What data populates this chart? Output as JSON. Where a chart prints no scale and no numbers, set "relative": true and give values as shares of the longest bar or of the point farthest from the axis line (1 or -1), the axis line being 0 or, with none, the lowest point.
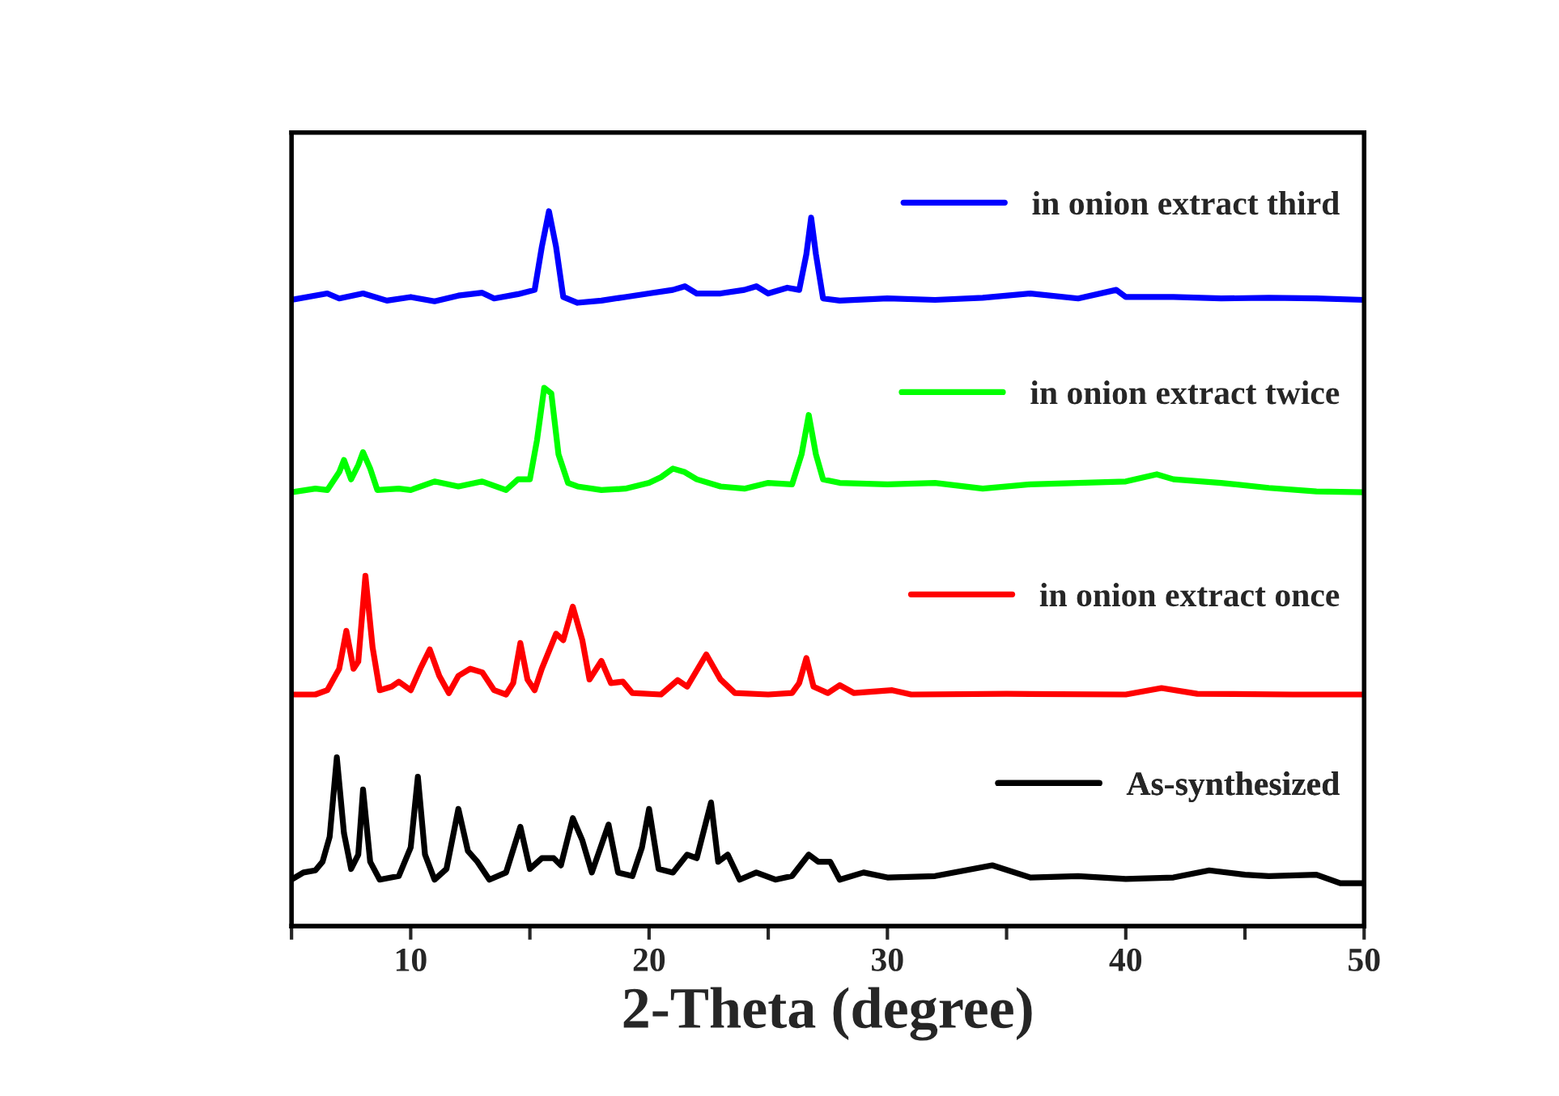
{
  "chart_data": {
    "type": "line",
    "relative": true,
    "xlabel": "2-Theta (degree)",
    "xlim": [
      5,
      50
    ],
    "xticks": [
      {
        "value": 5,
        "label": null
      },
      10,
      {
        "value": 15,
        "label": null
      },
      20,
      {
        "value": 25,
        "label": null
      },
      30,
      {
        "value": 35,
        "label": null
      },
      40,
      {
        "value": 45,
        "label": null
      },
      50
    ],
    "tick_labels": "x",
    "grid": false,
    "legend": "right",
    "marker": "none",
    "line_style": "solid",
    "series": [
      {
        "name": "in onion extract third",
        "color": "#0000ff",
        "x": [
          5,
          6.5,
          7,
          8,
          9,
          10,
          11,
          12,
          13,
          13.5,
          14.5,
          15.2,
          15.5,
          15.8,
          16.1,
          16.4,
          17,
          18,
          19,
          20,
          21,
          21.5,
          22,
          23,
          24,
          24.5,
          25,
          25.8,
          26.3,
          26.6,
          26.8,
          27,
          27.3,
          28,
          30,
          32,
          34,
          36,
          38,
          39.6,
          40,
          42,
          44,
          46,
          48,
          50
        ],
        "values": [
          0.876,
          0.885,
          0.878,
          0.885,
          0.875,
          0.88,
          0.874,
          0.882,
          0.886,
          0.878,
          0.884,
          0.89,
          0.95,
          1.0,
          0.95,
          0.88,
          0.872,
          0.875,
          0.88,
          0.885,
          0.89,
          0.895,
          0.885,
          0.885,
          0.89,
          0.895,
          0.885,
          0.893,
          0.89,
          0.94,
          0.991,
          0.94,
          0.878,
          0.875,
          0.878,
          0.876,
          0.879,
          0.885,
          0.878,
          0.89,
          0.88,
          0.88,
          0.878,
          0.879,
          0.878,
          0.876
        ]
      },
      {
        "name": "in onion extract twice",
        "color": "#00ff00",
        "x": [
          5,
          6,
          6.5,
          7,
          7.2,
          7.5,
          7.8,
          8,
          8.3,
          8.6,
          9.5,
          10,
          11,
          12,
          13,
          14,
          14.5,
          15,
          15.3,
          15.6,
          15.9,
          16.2,
          16.6,
          17,
          18,
          19,
          20,
          20.5,
          21,
          21.5,
          22,
          23,
          24,
          25,
          26,
          26.4,
          26.7,
          27,
          27.3,
          28,
          30,
          32,
          34,
          36,
          38,
          40,
          41.3,
          42,
          44,
          46,
          48,
          50
        ],
        "values": [
          0.607,
          0.612,
          0.61,
          0.635,
          0.652,
          0.625,
          0.645,
          0.663,
          0.64,
          0.61,
          0.612,
          0.61,
          0.622,
          0.615,
          0.622,
          0.61,
          0.625,
          0.625,
          0.68,
          0.753,
          0.745,
          0.66,
          0.62,
          0.615,
          0.61,
          0.612,
          0.62,
          0.628,
          0.64,
          0.635,
          0.625,
          0.615,
          0.612,
          0.62,
          0.618,
          0.66,
          0.715,
          0.66,
          0.625,
          0.62,
          0.618,
          0.62,
          0.612,
          0.618,
          0.62,
          0.622,
          0.632,
          0.625,
          0.62,
          0.613,
          0.608,
          0.607
        ]
      },
      {
        "name": "in onion extract once",
        "color": "#ff0000",
        "x": [
          5,
          6,
          6.5,
          7,
          7.3,
          7.6,
          7.8,
          8.1,
          8.4,
          8.7,
          9.2,
          9.5,
          10,
          10.4,
          10.8,
          11.2,
          11.6,
          12,
          12.5,
          13,
          13.5,
          14,
          14.3,
          14.6,
          14.9,
          15.2,
          15.5,
          16.1,
          16.4,
          16.8,
          17.2,
          17.5,
          18,
          18.4,
          18.9,
          19.3,
          20.5,
          21.2,
          21.6,
          22.4,
          23,
          23.6,
          25,
          26,
          26.3,
          26.6,
          26.9,
          27.5,
          28,
          28.6,
          30.2,
          31,
          35,
          40,
          41.5,
          43,
          47,
          50
        ],
        "values": [
          0.324,
          0.324,
          0.33,
          0.36,
          0.413,
          0.36,
          0.37,
          0.49,
          0.39,
          0.33,
          0.335,
          0.342,
          0.33,
          0.36,
          0.387,
          0.35,
          0.326,
          0.35,
          0.36,
          0.355,
          0.33,
          0.324,
          0.34,
          0.396,
          0.345,
          0.33,
          0.36,
          0.409,
          0.4,
          0.447,
          0.4,
          0.345,
          0.371,
          0.34,
          0.342,
          0.326,
          0.324,
          0.344,
          0.335,
          0.38,
          0.345,
          0.326,
          0.324,
          0.326,
          0.34,
          0.375,
          0.335,
          0.326,
          0.337,
          0.326,
          0.33,
          0.324,
          0.325,
          0.324,
          0.333,
          0.325,
          0.324,
          0.324
        ]
      },
      {
        "name": "As-synthesized",
        "color": "#000000",
        "x": [
          5,
          5.5,
          6,
          6.3,
          6.6,
          6.9,
          7.2,
          7.5,
          7.8,
          8,
          8.3,
          8.7,
          9.5,
          10,
          10.3,
          10.6,
          11,
          11.5,
          12,
          12.4,
          12.8,
          13.3,
          14,
          14.6,
          15,
          15.5,
          16,
          16.3,
          16.8,
          17.2,
          17.6,
          18.3,
          18.7,
          19.3,
          19.7,
          20,
          20.4,
          21,
          21.6,
          22,
          22.6,
          22.9,
          23.3,
          23.8,
          24.5,
          25.3,
          26,
          26.7,
          27.1,
          27.6,
          28,
          29,
          30,
          32,
          34.4,
          36,
          38,
          40,
          42,
          43.5,
          45,
          46,
          48,
          49,
          50
        ],
        "values": [
          0.065,
          0.075,
          0.078,
          0.09,
          0.125,
          0.236,
          0.13,
          0.08,
          0.1,
          0.191,
          0.09,
          0.065,
          0.07,
          0.11,
          0.209,
          0.1,
          0.065,
          0.08,
          0.164,
          0.105,
          0.09,
          0.065,
          0.075,
          0.139,
          0.08,
          0.095,
          0.095,
          0.085,
          0.151,
          0.12,
          0.075,
          0.142,
          0.075,
          0.07,
          0.11,
          0.164,
          0.08,
          0.075,
          0.1,
          0.095,
          0.173,
          0.09,
          0.1,
          0.065,
          0.075,
          0.065,
          0.07,
          0.1,
          0.09,
          0.09,
          0.065,
          0.075,
          0.068,
          0.07,
          0.085,
          0.068,
          0.07,
          0.066,
          0.068,
          0.078,
          0.072,
          0.07,
          0.072,
          0.06,
          0.06
        ]
      }
    ]
  }
}
